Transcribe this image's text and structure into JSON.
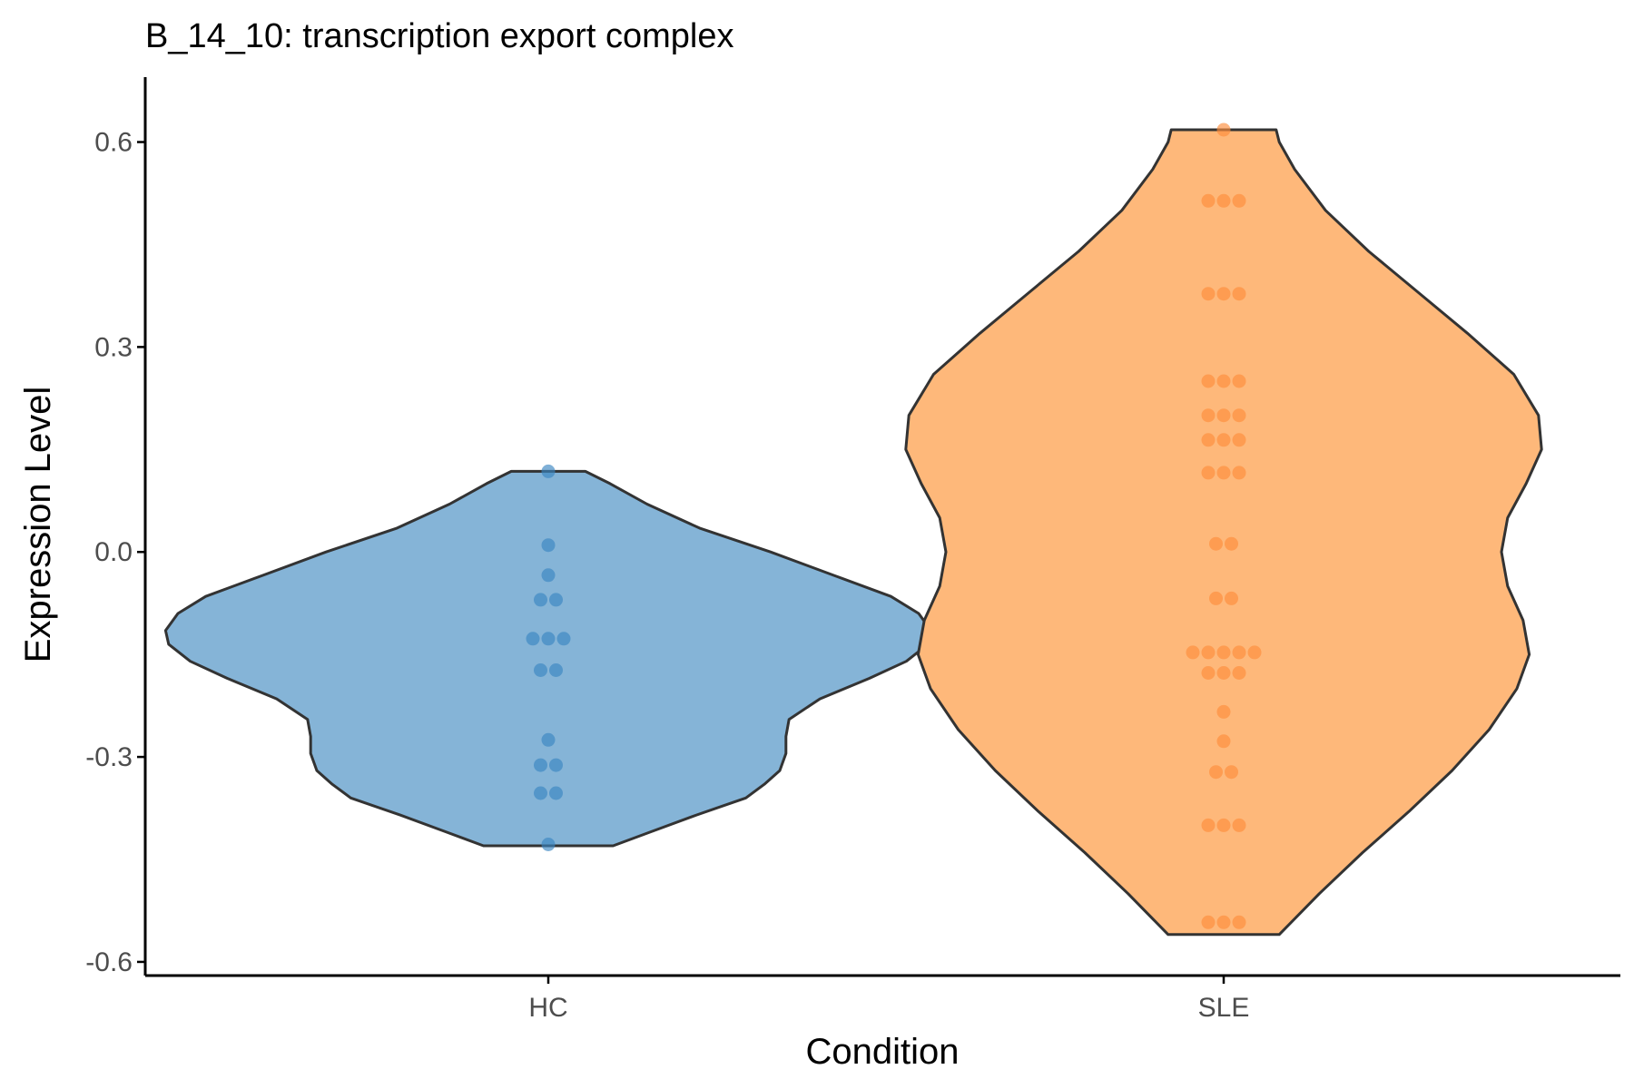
{
  "chart_data": {
    "type": "violin",
    "title": "B_14_10: transcription export complex",
    "xlabel": "Condition",
    "ylabel": "Expression Level",
    "ylim": [
      -0.62,
      0.695
    ],
    "yticks": [
      -0.6,
      -0.3,
      0.0,
      0.3,
      0.6
    ],
    "ytick_labels": [
      "-0.6",
      "-0.3",
      "0.0",
      "0.3",
      "0.6"
    ],
    "categories": [
      "HC",
      "SLE"
    ],
    "grid": false,
    "legend": "none",
    "series": [
      {
        "category": "HC",
        "fill": "#85b4d7",
        "point_color": "#3b86c2",
        "points": [
          0.118,
          0.01,
          -0.034,
          -0.07,
          -0.07,
          -0.127,
          -0.127,
          -0.127,
          -0.173,
          -0.173,
          -0.275,
          -0.312,
          -0.312,
          -0.353,
          -0.353,
          -0.428
        ],
        "density": [
          [
            -0.43,
            0.21
          ],
          [
            -0.41,
            0.33
          ],
          [
            -0.385,
            0.48
          ],
          [
            -0.36,
            0.64
          ],
          [
            -0.34,
            0.7
          ],
          [
            -0.32,
            0.75
          ],
          [
            -0.295,
            0.77
          ],
          [
            -0.27,
            0.77
          ],
          [
            -0.245,
            0.78
          ],
          [
            -0.215,
            0.88
          ],
          [
            -0.185,
            1.04
          ],
          [
            -0.16,
            1.16
          ],
          [
            -0.135,
            1.23
          ],
          [
            -0.115,
            1.24
          ],
          [
            -0.09,
            1.2
          ],
          [
            -0.065,
            1.11
          ],
          [
            -0.035,
            0.93
          ],
          [
            0.0,
            0.72
          ],
          [
            0.035,
            0.49
          ],
          [
            0.07,
            0.32
          ],
          [
            0.1,
            0.2
          ],
          [
            0.118,
            0.12
          ]
        ]
      },
      {
        "category": "SLE",
        "fill": "#feb87a",
        "point_color": "#fd8d3c",
        "points": [
          0.618,
          0.514,
          0.514,
          0.514,
          0.378,
          0.378,
          0.378,
          0.25,
          0.25,
          0.25,
          0.2,
          0.2,
          0.2,
          0.164,
          0.164,
          0.164,
          0.116,
          0.116,
          0.116,
          0.012,
          0.012,
          -0.068,
          -0.068,
          -0.147,
          -0.147,
          -0.147,
          -0.147,
          -0.147,
          -0.177,
          -0.177,
          -0.177,
          -0.234,
          -0.277,
          -0.322,
          -0.322,
          -0.4,
          -0.4,
          -0.4,
          -0.542,
          -0.542,
          -0.542
        ],
        "density": [
          [
            -0.56,
            0.18
          ],
          [
            -0.5,
            0.31
          ],
          [
            -0.44,
            0.45
          ],
          [
            -0.38,
            0.6
          ],
          [
            -0.32,
            0.74
          ],
          [
            -0.26,
            0.86
          ],
          [
            -0.2,
            0.95
          ],
          [
            -0.15,
            0.99
          ],
          [
            -0.1,
            0.97
          ],
          [
            -0.05,
            0.92
          ],
          [
            0.0,
            0.9
          ],
          [
            0.05,
            0.92
          ],
          [
            0.1,
            0.98
          ],
          [
            0.15,
            1.03
          ],
          [
            0.2,
            1.02
          ],
          [
            0.26,
            0.94
          ],
          [
            0.32,
            0.79
          ],
          [
            0.38,
            0.63
          ],
          [
            0.44,
            0.47
          ],
          [
            0.5,
            0.33
          ],
          [
            0.56,
            0.23
          ],
          [
            0.6,
            0.18
          ],
          [
            0.618,
            0.17
          ]
        ]
      }
    ]
  }
}
